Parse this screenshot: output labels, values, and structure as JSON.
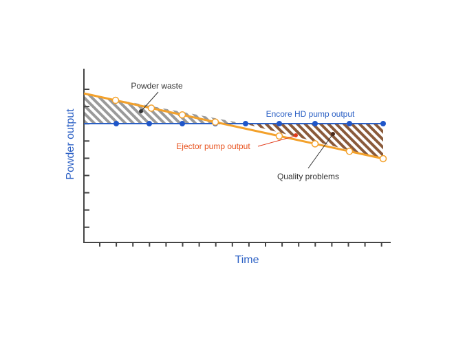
{
  "axes": {
    "y_label": "Powder output",
    "x_label": "Time"
  },
  "annotations": {
    "powder_waste": "Powder waste",
    "encore": "Encore HD pump output",
    "ejector": "Ejector pump output",
    "quality": "Quality problems"
  }
}
